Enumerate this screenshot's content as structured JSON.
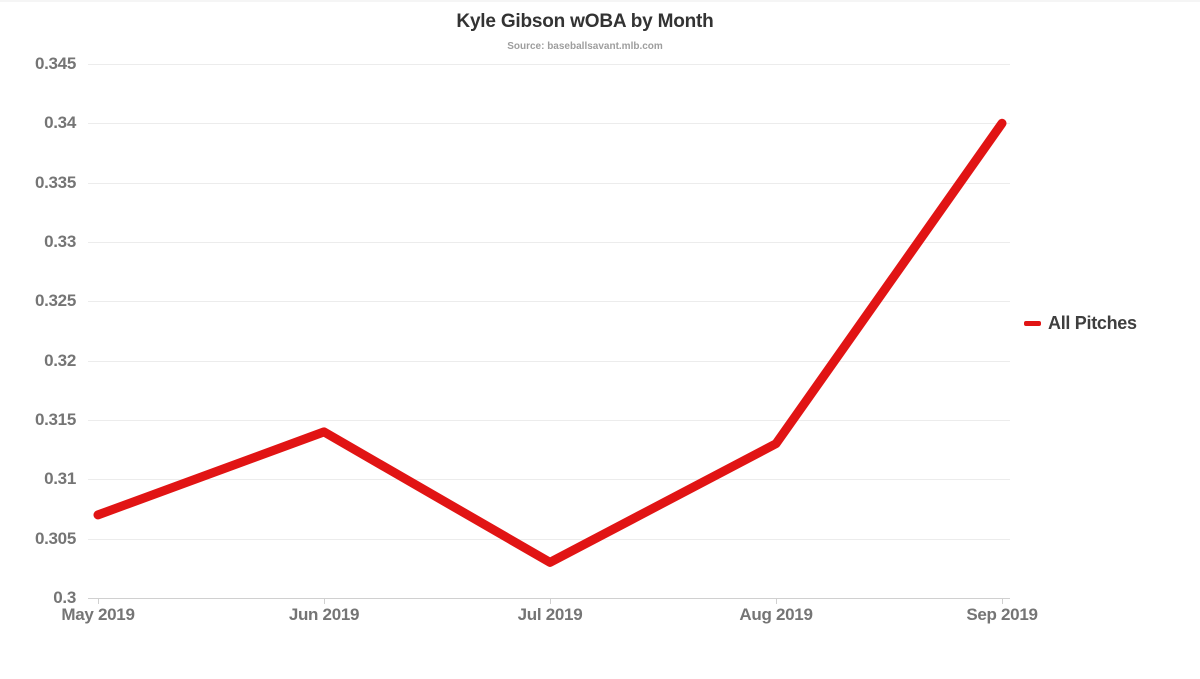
{
  "chart": {
    "title": "Kyle Gibson wOBA by Month",
    "subtitle": "Source: baseballsavant.mlb.com",
    "legend": [
      {
        "label": "All Pitches",
        "color": "#e11414",
        "marker": "dash"
      }
    ]
  },
  "chart_data": {
    "type": "line",
    "title": "Kyle Gibson wOBA by Month",
    "subtitle": "Source: baseballsavant.mlb.com",
    "x": [
      "May 2019",
      "Jun 2019",
      "Jul 2019",
      "Aug 2019",
      "Sep 2019"
    ],
    "series": [
      {
        "name": "All Pitches",
        "color": "#e11414",
        "values": [
          0.307,
          0.314,
          0.303,
          0.313,
          0.34
        ]
      }
    ],
    "ylim": [
      0.3,
      0.345
    ],
    "yticks": [
      0.3,
      0.305,
      0.31,
      0.315,
      0.32,
      0.325,
      0.33,
      0.335,
      0.34,
      0.345
    ],
    "ytick_labels": [
      "0.3",
      "0.305",
      "0.31",
      "0.315",
      "0.32",
      "0.325",
      "0.33",
      "0.335",
      "0.34",
      "0.345"
    ],
    "grid": "horizontal",
    "legend_position": "right"
  },
  "colors": {
    "line": "#e11414",
    "grid": "#ececec",
    "axis": "#d0d0d0",
    "tick_label": "#757575",
    "title": "#333333",
    "subtitle": "#9e9e9e",
    "legend_text": "#3f3f3f",
    "background": "#ffffff"
  }
}
